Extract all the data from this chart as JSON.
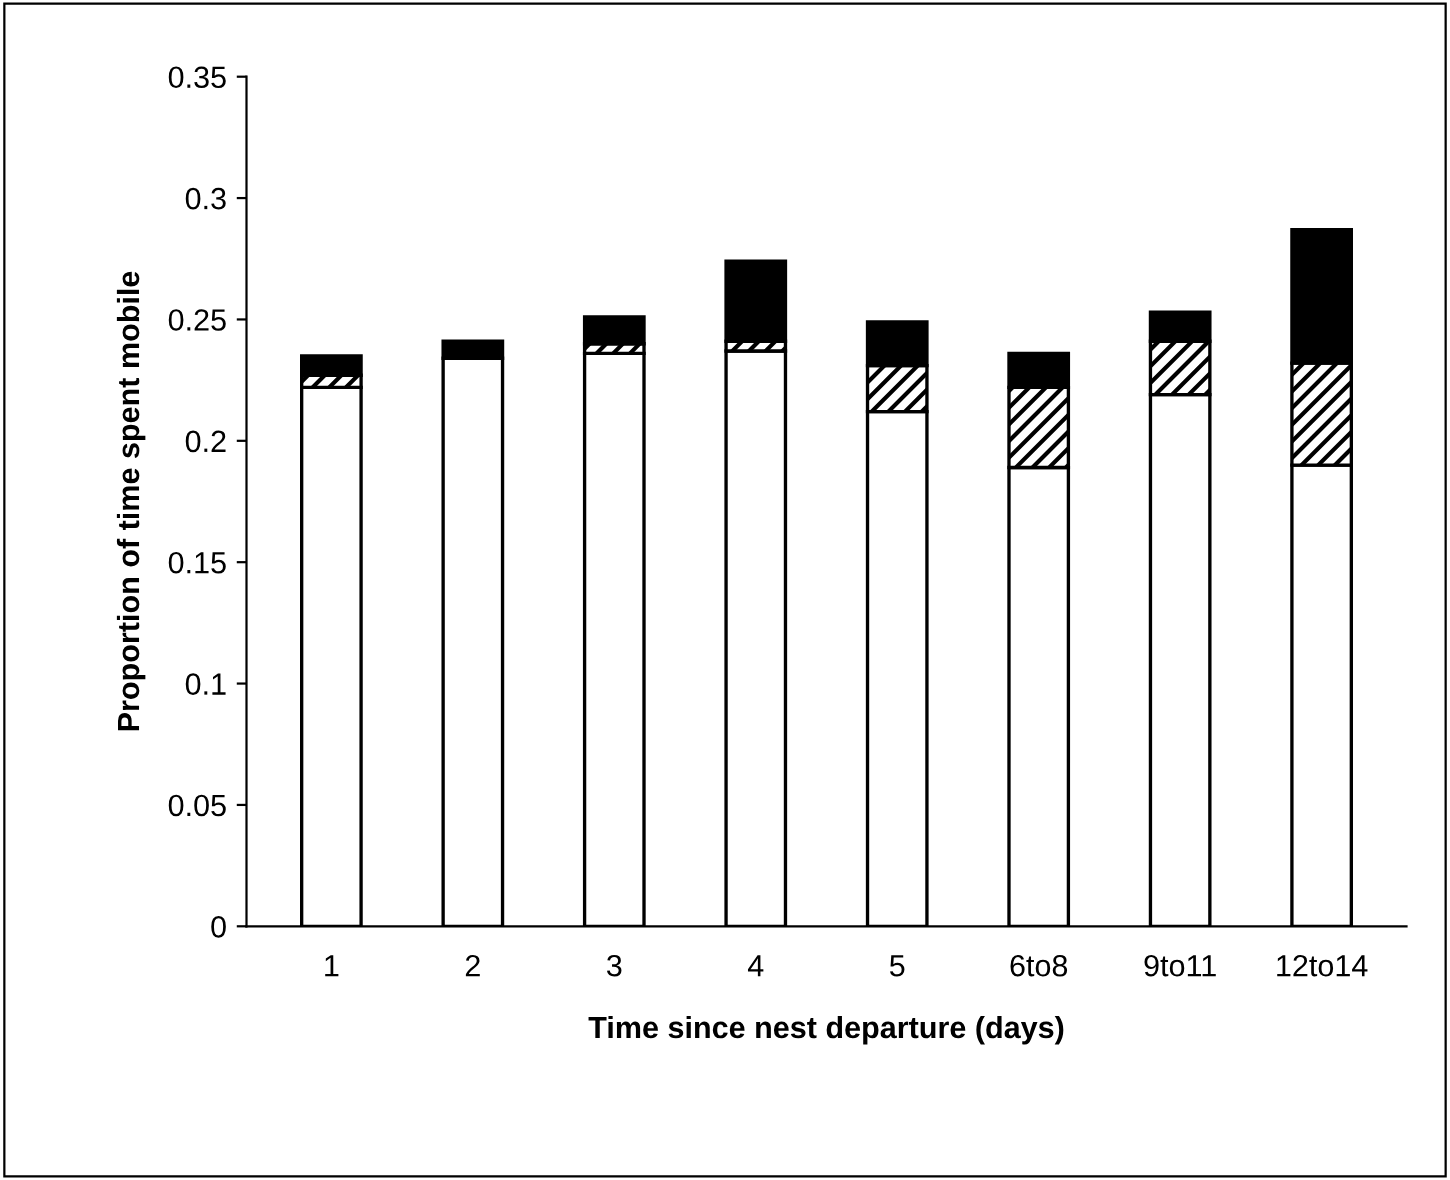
{
  "chart_data": {
    "type": "bar",
    "stacked": true,
    "xlabel": "Time since nest departure (days)",
    "ylabel": "Proportion of time spent mobile",
    "categories": [
      "1",
      "2",
      "3",
      "4",
      "5",
      "6to8",
      "9to11",
      "12to14"
    ],
    "series": [
      {
        "color": "#ffffff",
        "values": [
          0.222,
          0.234,
          0.236,
          0.237,
          0.212,
          0.189,
          0.219,
          0.19
        ]
      },
      {
        "color": "#000000",
        "values": [
          0.005,
          0,
          0.004,
          0.004,
          0.019,
          0.033,
          0.022,
          0.042
        ]
      },
      {
        "color": "#000000",
        "values": [
          0.008,
          0.007,
          0.011,
          0.033,
          0.018,
          0.014,
          0.012,
          0.055
        ]
      }
    ],
    "ylim": [
      0,
      0.35
    ],
    "yticks": [
      0,
      0.05,
      0.1,
      0.15,
      0.2,
      0.25,
      0.3,
      0.35
    ],
    "grid": false,
    "legend": false
  }
}
